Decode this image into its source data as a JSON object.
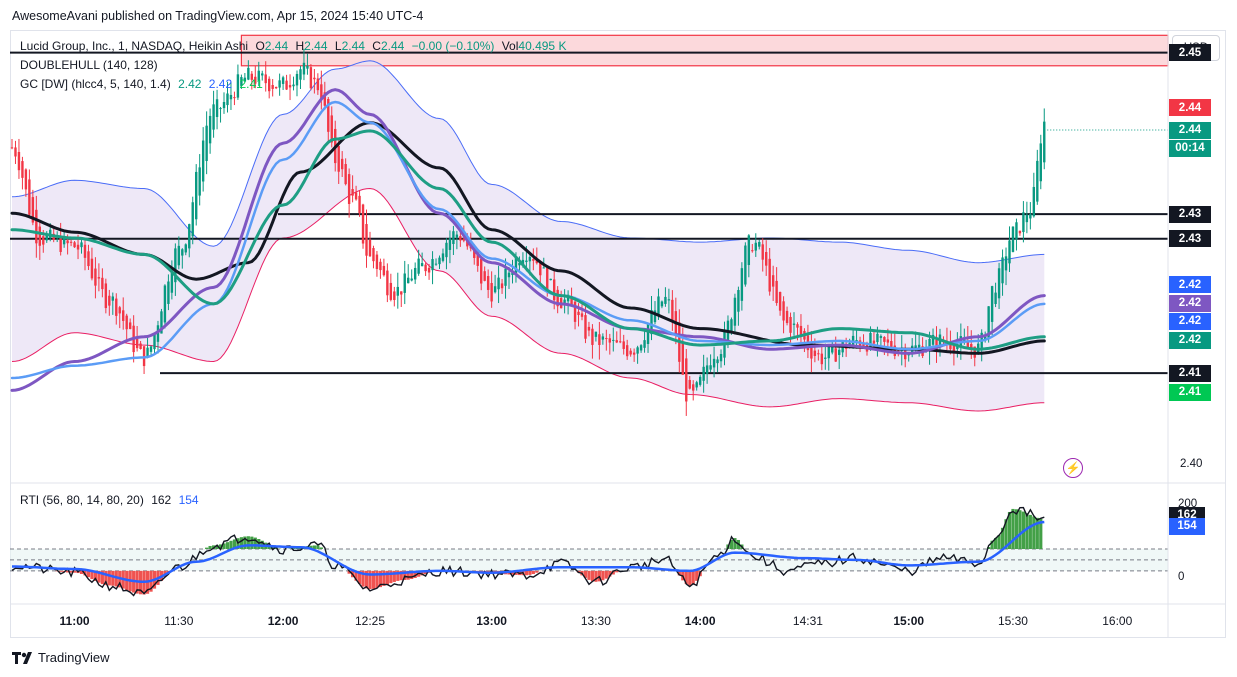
{
  "header": {
    "published": "AwesomeAvani published on TradingView.com, Apr 15, 2024 15:40 UTC-4"
  },
  "legend": {
    "symbol": "Lucid Group, Inc., 1, NASDAQ, Heikin Ashi",
    "ohlc": [
      {
        "key": "O",
        "value": "2.44"
      },
      {
        "key": "H",
        "value": "2.44"
      },
      {
        "key": "L",
        "value": "2.44"
      },
      {
        "key": "C",
        "value": "2.44"
      }
    ],
    "change": "−0.00 (−0.10%)",
    "vol_label": "Vol",
    "vol_value": "40.495 K",
    "indicator1": "DOUBLEHULL (140, 128)",
    "indicator2": "GC [DW] (hlcc4, 5, 140, 1.4)",
    "indicator2_values": [
      "2.42",
      "2.42",
      "2.41"
    ],
    "rti": "RTI (56, 80, 14, 80, 20)",
    "rti_values": [
      "162",
      "154"
    ]
  },
  "currency": "USD",
  "colors": {
    "up": "#089981",
    "down": "#f23645",
    "black_line": "#131722",
    "purple": "#7e57c2",
    "blue": "#5b9cf6",
    "teal": "#1e9e84",
    "band_fill": "#e8e0f4",
    "zone_fill": "#fcd9dc",
    "zone_border": "#f23645"
  },
  "price_axis": {
    "labels": [
      {
        "text": "2.45",
        "price": 2.45,
        "bg": "#131722"
      },
      {
        "text": "2.44",
        "price": 2.4433,
        "bg": "#f23645"
      },
      {
        "text": "2.44",
        "price": 2.4406,
        "bg": "#089981"
      },
      {
        "text": "00:14",
        "price": 2.4384,
        "bg": "#089981"
      },
      {
        "text": "2.43",
        "price": 2.4304,
        "bg": "#131722"
      },
      {
        "text": "2.43",
        "price": 2.4274,
        "bg": "#131722"
      },
      {
        "text": "2.42",
        "price": 2.4218,
        "bg": "#2962ff"
      },
      {
        "text": "2.42",
        "price": 2.4196,
        "bg": "#7e57c2"
      },
      {
        "text": "2.42",
        "price": 2.4174,
        "bg": "#2962ff"
      },
      {
        "text": "2.42",
        "price": 2.4151,
        "bg": "#089981"
      },
      {
        "text": "2.41",
        "price": 2.4111,
        "bg": "#131722"
      },
      {
        "text": "2.41",
        "price": 2.4088,
        "bg": "#00c853"
      }
    ],
    "plain_ticks": [
      {
        "text": "2.40",
        "price": 2.4
      }
    ]
  },
  "rti_axis": {
    "ticks": [
      {
        "text": "200",
        "value": 200
      },
      {
        "text": "0",
        "value": 0
      }
    ],
    "labels": [
      {
        "text": "162",
        "value": 162,
        "bg": "#131722"
      },
      {
        "text": "154",
        "value": 154,
        "bg": "#2962ff"
      }
    ]
  },
  "time_axis": [
    "11:00",
    "11:30",
    "12:00",
    "12:25",
    "13:00",
    "13:30",
    "14:00",
    "14:31",
    "15:00",
    "15:30",
    "16:00"
  ],
  "chart_data": {
    "type": "candlestick",
    "title": "Lucid Group, Inc., 1, NASDAQ, Heikin Ashi",
    "x_range": [
      "10:42",
      "16:10"
    ],
    "y_range": [
      2.398,
      2.4525
    ],
    "horizontal_levels": [
      2.45,
      2.4304,
      2.4274,
      2.4111
    ],
    "resistance_zone": {
      "from": 2.4484,
      "to": 2.4521,
      "start_time": "11:48"
    },
    "candles_keypoints": [
      [
        "10:42",
        2.4385
      ],
      [
        "10:50",
        2.4275
      ],
      [
        "11:00",
        2.4265
      ],
      [
        "11:10",
        2.42
      ],
      [
        "11:20",
        2.413
      ],
      [
        "11:30",
        2.426
      ],
      [
        "11:40",
        2.443
      ],
      [
        "11:50",
        2.447
      ],
      [
        "12:00",
        2.446
      ],
      [
        "12:05",
        2.448
      ],
      [
        "12:10",
        2.446
      ],
      [
        "12:15",
        2.437
      ],
      [
        "12:20",
        2.432
      ],
      [
        "12:25",
        2.425
      ],
      [
        "12:32",
        2.421
      ],
      [
        "12:40",
        2.424
      ],
      [
        "12:50",
        2.428
      ],
      [
        "13:00",
        2.421
      ],
      [
        "13:10",
        2.426
      ],
      [
        "13:20",
        2.42
      ],
      [
        "13:30",
        2.415
      ],
      [
        "13:40",
        2.414
      ],
      [
        "13:50",
        2.42
      ],
      [
        "13:57",
        2.408
      ],
      [
        "14:05",
        2.414
      ],
      [
        "14:15",
        2.427
      ],
      [
        "14:25",
        2.417
      ],
      [
        "14:35",
        2.413
      ],
      [
        "14:45",
        2.415
      ],
      [
        "15:00",
        2.414
      ],
      [
        "15:10",
        2.415
      ],
      [
        "15:20",
        2.414
      ],
      [
        "15:25",
        2.422
      ],
      [
        "15:30",
        2.428
      ],
      [
        "15:35",
        2.431
      ],
      [
        "15:39",
        2.4415
      ]
    ],
    "series": [
      {
        "name": "DOUBLEHULL (140, 128)",
        "color": "#131722",
        "points": [
          [
            "10:42",
            2.4305
          ],
          [
            "11:00",
            2.4282
          ],
          [
            "11:20",
            2.4255
          ],
          [
            "11:35",
            2.4225
          ],
          [
            "11:50",
            2.4245
          ],
          [
            "12:05",
            2.4355
          ],
          [
            "12:25",
            2.4415
          ],
          [
            "12:45",
            2.436
          ],
          [
            "13:00",
            2.4285
          ],
          [
            "13:20",
            2.4235
          ],
          [
            "13:40",
            2.419
          ],
          [
            "14:00",
            2.4165
          ],
          [
            "14:30",
            2.4145
          ],
          [
            "15:00",
            2.414
          ],
          [
            "15:20",
            2.4135
          ],
          [
            "15:39",
            2.415
          ]
        ]
      },
      {
        "name": "GC upper",
        "color": "#5b9cf6",
        "points": [
          [
            "10:42",
            2.4325
          ],
          [
            "11:00",
            2.4345
          ],
          [
            "11:20",
            2.4335
          ],
          [
            "11:40",
            2.4265
          ],
          [
            "12:00",
            2.4425
          ],
          [
            "12:15",
            2.448
          ],
          [
            "12:25",
            2.449
          ],
          [
            "12:45",
            2.442
          ],
          [
            "13:00",
            2.434
          ],
          [
            "13:20",
            2.4295
          ],
          [
            "13:40",
            2.4275
          ],
          [
            "14:00",
            2.427
          ],
          [
            "14:20",
            2.4275
          ],
          [
            "14:40",
            2.427
          ],
          [
            "15:00",
            2.426
          ],
          [
            "15:20",
            2.4245
          ],
          [
            "15:39",
            2.4255
          ]
        ]
      },
      {
        "name": "GC lower",
        "color": "#f23645",
        "points": [
          [
            "10:42",
            2.4125
          ],
          [
            "11:00",
            2.416
          ],
          [
            "11:20",
            2.4145
          ],
          [
            "11:40",
            2.4125
          ],
          [
            "12:00",
            2.4275
          ],
          [
            "12:25",
            2.4335
          ],
          [
            "12:45",
            2.4235
          ],
          [
            "13:00",
            2.418
          ],
          [
            "13:20",
            2.4135
          ],
          [
            "13:40",
            2.4105
          ],
          [
            "13:57",
            2.4085
          ],
          [
            "14:20",
            2.407
          ],
          [
            "14:40",
            2.408
          ],
          [
            "15:00",
            2.4075
          ],
          [
            "15:20",
            2.4065
          ],
          [
            "15:39",
            2.4075
          ]
        ]
      },
      {
        "name": "Purple MA",
        "color": "#7e57c2",
        "points": [
          [
            "10:42",
            2.409
          ],
          [
            "11:00",
            2.4125
          ],
          [
            "11:20",
            2.4155
          ],
          [
            "11:40",
            2.4215
          ],
          [
            "12:00",
            2.439
          ],
          [
            "12:15",
            2.4455
          ],
          [
            "12:25",
            2.4425
          ],
          [
            "12:45",
            2.4305
          ],
          [
            "13:00",
            2.4245
          ],
          [
            "13:20",
            2.4195
          ],
          [
            "13:40",
            2.4165
          ],
          [
            "14:00",
            2.4155
          ],
          [
            "14:20",
            2.414
          ],
          [
            "14:40",
            2.4145
          ],
          [
            "15:00",
            2.4135
          ],
          [
            "15:20",
            2.4155
          ],
          [
            "15:39",
            2.4205
          ]
        ]
      },
      {
        "name": "Blue MA",
        "color": "#5b9cf6",
        "points": [
          [
            "10:42",
            2.4105
          ],
          [
            "11:00",
            2.412
          ],
          [
            "11:20",
            2.413
          ],
          [
            "11:40",
            2.4195
          ],
          [
            "12:00",
            2.437
          ],
          [
            "12:15",
            2.444
          ],
          [
            "12:25",
            2.4415
          ],
          [
            "12:45",
            2.431
          ],
          [
            "13:00",
            2.425
          ],
          [
            "13:20",
            2.4205
          ],
          [
            "13:40",
            2.4175
          ],
          [
            "14:00",
            2.415
          ],
          [
            "14:20",
            2.4145
          ],
          [
            "14:40",
            2.415
          ],
          [
            "15:00",
            2.414
          ],
          [
            "15:20",
            2.415
          ],
          [
            "15:39",
            2.4195
          ]
        ]
      },
      {
        "name": "Teal MA",
        "color": "#1e9e84",
        "points": [
          [
            "10:42",
            2.4285
          ],
          [
            "11:00",
            2.4275
          ],
          [
            "11:20",
            2.4255
          ],
          [
            "11:40",
            2.4195
          ],
          [
            "12:00",
            2.4315
          ],
          [
            "12:15",
            2.4395
          ],
          [
            "12:25",
            2.4405
          ],
          [
            "12:45",
            2.4335
          ],
          [
            "13:00",
            2.427
          ],
          [
            "13:20",
            2.4205
          ],
          [
            "13:40",
            2.4165
          ],
          [
            "14:00",
            2.4145
          ],
          [
            "14:20",
            2.415
          ],
          [
            "14:40",
            2.4165
          ],
          [
            "15:00",
            2.416
          ],
          [
            "15:20",
            2.414
          ],
          [
            "15:39",
            2.4155
          ]
        ]
      }
    ],
    "rti": {
      "range": [
        -60,
        220
      ],
      "upper_band": 80,
      "lower_band": 20,
      "points": [
        [
          "10:42",
          34
        ],
        [
          "11:00",
          15
        ],
        [
          "11:10",
          -20
        ],
        [
          "11:20",
          -45
        ],
        [
          "11:30",
          30
        ],
        [
          "11:40",
          90
        ],
        [
          "11:50",
          115
        ],
        [
          "12:00",
          80
        ],
        [
          "12:10",
          90
        ],
        [
          "12:15",
          35
        ],
        [
          "12:25",
          -30
        ],
        [
          "12:35",
          -5
        ],
        [
          "12:45",
          20
        ],
        [
          "13:00",
          12
        ],
        [
          "13:10",
          8
        ],
        [
          "13:20",
          40
        ],
        [
          "13:30",
          -10
        ],
        [
          "13:40",
          30
        ],
        [
          "13:50",
          50
        ],
        [
          "13:57",
          -20
        ],
        [
          "14:05",
          60
        ],
        [
          "14:10",
          110
        ],
        [
          "14:15",
          60
        ],
        [
          "14:25",
          20
        ],
        [
          "14:35",
          40
        ],
        [
          "14:45",
          55
        ],
        [
          "15:00",
          20
        ],
        [
          "15:10",
          55
        ],
        [
          "15:20",
          40
        ],
        [
          "15:25",
          110
        ],
        [
          "15:30",
          190
        ],
        [
          "15:39",
          162
        ]
      ],
      "signal": [
        [
          "10:42",
          32
        ],
        [
          "11:00",
          25
        ],
        [
          "11:20",
          -10
        ],
        [
          "11:35",
          45
        ],
        [
          "11:50",
          90
        ],
        [
          "12:05",
          85
        ],
        [
          "12:25",
          10
        ],
        [
          "12:45",
          20
        ],
        [
          "13:00",
          15
        ],
        [
          "13:20",
          30
        ],
        [
          "13:40",
          30
        ],
        [
          "13:57",
          20
        ],
        [
          "14:10",
          70
        ],
        [
          "14:30",
          55
        ],
        [
          "14:45",
          50
        ],
        [
          "15:00",
          35
        ],
        [
          "15:20",
          45
        ],
        [
          "15:39",
          154
        ]
      ]
    }
  }
}
